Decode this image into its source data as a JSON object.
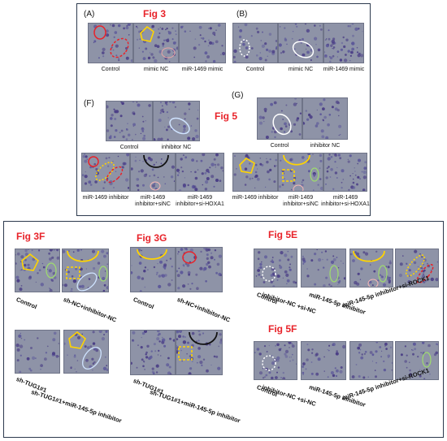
{
  "top": {
    "letters": {
      "a": "(A)",
      "b": "(B)",
      "f": "(F)",
      "g": "(G)"
    },
    "figs": {
      "fig3": "Fig 3",
      "fig5": "Fig 5"
    },
    "labels": {
      "a1": "Control",
      "a2": "mimic NC",
      "a3": "miR-1469 mimic",
      "b1": "Control",
      "b2": "mimic NC",
      "b3": "miR-1469 mimic",
      "f1": "Control",
      "f2": "inhibitor NC",
      "f3": "miR-1469 inhibitor",
      "f4a": "miR-1469",
      "f4b": "inhibitor+siNC",
      "f5a": "miR-1469",
      "f5b": "inhibitor+si-HOXA1",
      "g1": "Control",
      "g2": "inhibitor NC",
      "g3": "miR-1469 inhibitor",
      "g4a": "miR-1469",
      "g4b": "inhibitor+siNC",
      "g5a": "miR-1469",
      "g5b": "inhibitor+si-HOXA1"
    }
  },
  "bottom": {
    "figs": {
      "f3f": "Fig 3F",
      "f3g": "Fig 3G",
      "f5e": "Fig 5E",
      "f5f": "Fig 5F"
    },
    "labels": {
      "c1": "Control",
      "c2": "sh-NC+inhibitor-NC",
      "c3": "sh-TUG1#1",
      "c4": "sh-TUG1#1+miR-145-5p inhibitor",
      "d1": "Control",
      "d2": "sh-NC+inhibitor-NC",
      "d3": "sh-TUG1#1",
      "d4": "sh-TUG1#1+miR-145-5p inhibitor",
      "e1": "Control",
      "e2": "inhibitor-NC +si-NC",
      "e3": "miR-145-5p inhibitor",
      "e4": "miR-145-5p inhibitor+si-ROCK1",
      "g1": "Control",
      "g2": "inhibitor-NC +si-NC",
      "g3": "miR-145-5p inhibitor",
      "g4": "miR-145-5p inhibitor+si-ROCK1"
    }
  }
}
